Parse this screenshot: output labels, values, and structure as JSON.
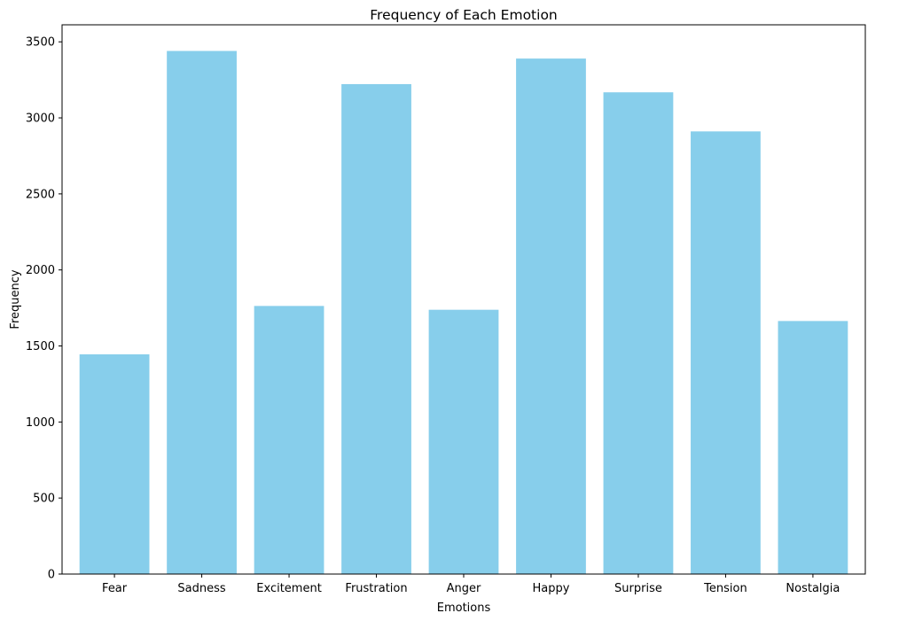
{
  "chart_data": {
    "type": "bar",
    "title": "Frequency of Each Emotion",
    "xlabel": "Emotions",
    "ylabel": "Frequency",
    "categories": [
      "Fear",
      "Sadness",
      "Excitement",
      "Frustration",
      "Anger",
      "Happy",
      "Surprise",
      "Tension",
      "Nostalgia"
    ],
    "values": [
      1445,
      3440,
      1763,
      3222,
      1738,
      3390,
      3168,
      2911,
      1664
    ],
    "ylim": [
      0,
      3612
    ],
    "yticks": [
      0,
      500,
      1000,
      1500,
      2000,
      2500,
      3000,
      3500
    ],
    "bar_color": "#87CEEB",
    "grid": false
  }
}
